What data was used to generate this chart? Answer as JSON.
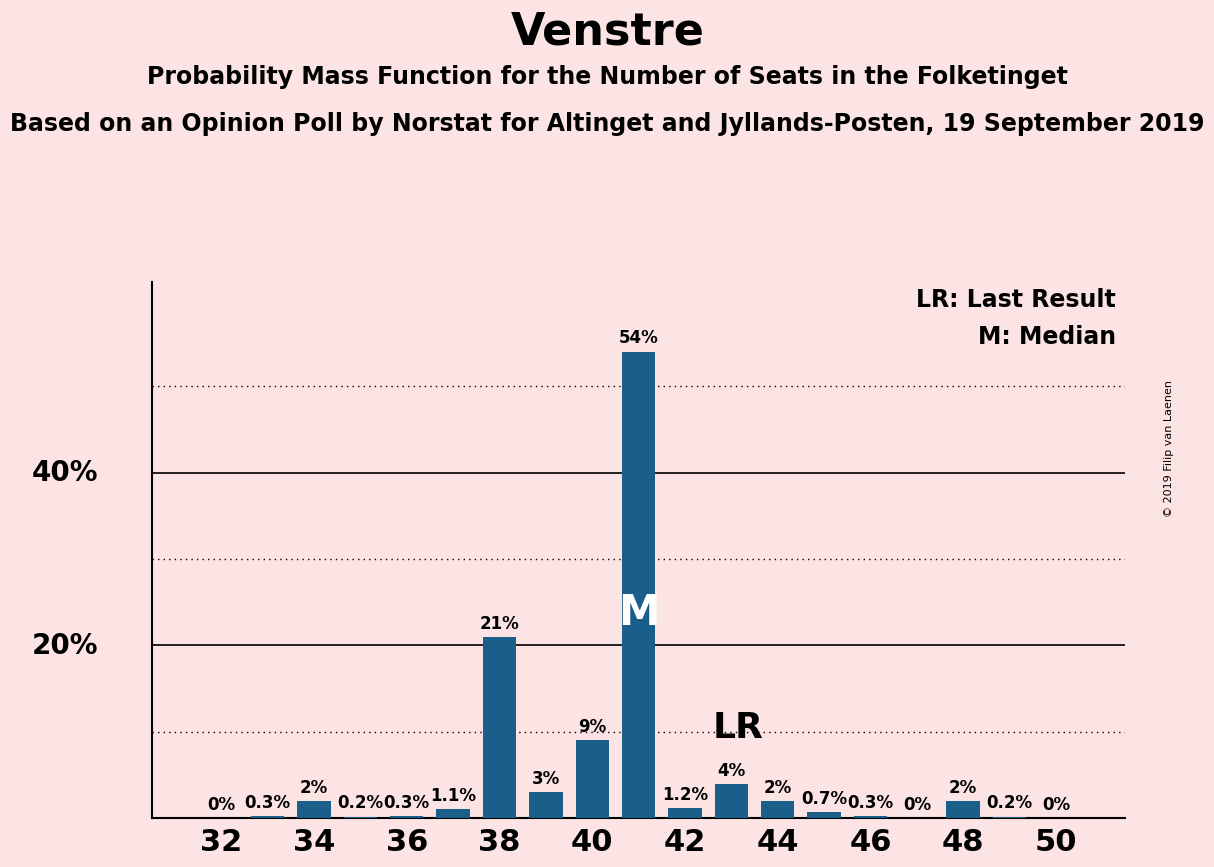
{
  "title": "Venstre",
  "subtitle1": "Probability Mass Function for the Number of Seats in the Folketinget",
  "subtitle2": "Based on an Opinion Poll by Norstat for Altinget and Jyllands-Posten, 19 September 2019",
  "copyright": "© 2019 Filip van Laenen",
  "seats": [
    32,
    33,
    34,
    35,
    36,
    37,
    38,
    39,
    40,
    41,
    42,
    43,
    44,
    45,
    46,
    47,
    48,
    49,
    50
  ],
  "probabilities": [
    0.0,
    0.3,
    2.0,
    0.2,
    0.3,
    1.1,
    21.0,
    3.0,
    9.0,
    54.0,
    1.2,
    4.0,
    2.0,
    0.7,
    0.3,
    0.0,
    2.0,
    0.2,
    0.0
  ],
  "labels": [
    "0%",
    "0.3%",
    "2%",
    "0.2%",
    "0.3%",
    "1.1%",
    "21%",
    "3%",
    "9%",
    "54%",
    "1.2%",
    "4%",
    "2%",
    "0.7%",
    "0.3%",
    "0%",
    "2%",
    "0.2%",
    "0%"
  ],
  "bar_color": "#1a5f8a",
  "background_color": "#fce4e4",
  "median_seat": 41,
  "last_result_seat": 42,
  "solid_gridlines": [
    20,
    40
  ],
  "dotted_gridlines": [
    10,
    30,
    50
  ],
  "xlim": [
    30.5,
    51.5
  ],
  "ylim": [
    0,
    62
  ],
  "title_fontsize": 32,
  "subtitle1_fontsize": 17,
  "subtitle2_fontsize": 17,
  "label_fontsize": 12,
  "ytick_fontsize": 20,
  "xtick_fontsize": 22,
  "legend_fontsize": 17,
  "bar_width": 0.72
}
